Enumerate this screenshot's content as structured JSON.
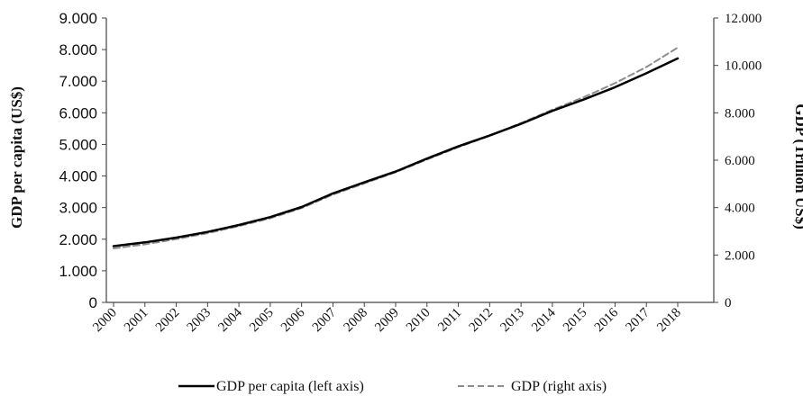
{
  "chart_data": {
    "type": "line",
    "x": [
      "2000",
      "2001",
      "2002",
      "2003",
      "2004",
      "2005",
      "2006",
      "2007",
      "2008",
      "2009",
      "2010",
      "2011",
      "2012",
      "2013",
      "2014",
      "2015",
      "2016",
      "2017",
      "2018"
    ],
    "series": [
      {
        "name": "GDP per capita (left axis)",
        "axis": "left",
        "style": "solid",
        "color": "#000000",
        "values": [
          1780,
          1900,
          2050,
          2230,
          2450,
          2700,
          3020,
          3450,
          3800,
          4140,
          4550,
          4940,
          5280,
          5650,
          6060,
          6420,
          6810,
          7250,
          7720
        ]
      },
      {
        "name": "GDP  (right axis)",
        "axis": "right",
        "style": "dashed",
        "color": "#8c8c8c",
        "values": [
          2280,
          2450,
          2670,
          2920,
          3220,
          3550,
          3980,
          4550,
          5020,
          5490,
          6030,
          6550,
          7030,
          7570,
          8130,
          8660,
          9250,
          9930,
          10750
        ]
      }
    ],
    "ylabel_left": "GDP  per  capita  (US$)",
    "ylabel_right": "GDP  (Trillion  US$)",
    "ylim_left": [
      0,
      9000
    ],
    "ylim_right": [
      0,
      12000
    ],
    "yticks_left": [
      "0",
      "1.000",
      "2.000",
      "3.000",
      "4.000",
      "5.000",
      "6.000",
      "7.000",
      "8.000",
      "9.000"
    ],
    "yticks_right": [
      "0",
      "2.000",
      "4.000",
      "6.000",
      "8.000",
      "10.000",
      "12.000"
    ],
    "grid": false,
    "legend_position": "bottom"
  }
}
